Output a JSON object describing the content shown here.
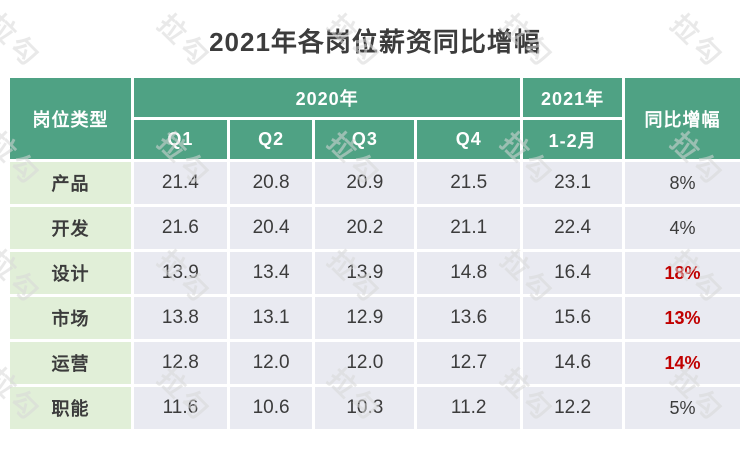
{
  "title": "2021年各岗位薪资同比增幅",
  "watermark": {
    "text": "拉勾"
  },
  "colors": {
    "header_green": "#4FA284",
    "label_green": "#E1EFD8",
    "cell_gray": "#E9EAF1",
    "highlight_red": "#C00000",
    "text_dark": "#3C3C3C",
    "watermark_gray": "#D8D8D8"
  },
  "chart_data": {
    "type": "table",
    "title": "2021年各岗位薪资同比增幅",
    "header": {
      "col_type": "岗位类型",
      "group_2020": "2020年",
      "group_2021": "2021年",
      "quarters": [
        "Q1",
        "Q2",
        "Q3",
        "Q4"
      ],
      "months_2021": "1-2月",
      "yoy": "同比增幅"
    },
    "rows": [
      {
        "label": "产品",
        "values": [
          "21.4",
          "20.8",
          "20.9",
          "21.5",
          "23.1"
        ],
        "yoy": "8%",
        "highlight": false
      },
      {
        "label": "开发",
        "values": [
          "21.6",
          "20.4",
          "20.2",
          "21.1",
          "22.4"
        ],
        "yoy": "4%",
        "highlight": false
      },
      {
        "label": "设计",
        "values": [
          "13.9",
          "13.4",
          "13.9",
          "14.8",
          "16.4"
        ],
        "yoy": "18%",
        "highlight": true
      },
      {
        "label": "市场",
        "values": [
          "13.8",
          "13.1",
          "12.9",
          "13.6",
          "15.6"
        ],
        "yoy": "13%",
        "highlight": true
      },
      {
        "label": "运营",
        "values": [
          "12.8",
          "12.0",
          "12.0",
          "12.7",
          "14.6"
        ],
        "yoy": "14%",
        "highlight": true
      },
      {
        "label": "职能",
        "values": [
          "11.6",
          "10.6",
          "10.3",
          "11.2",
          "12.2"
        ],
        "yoy": "5%",
        "highlight": false
      }
    ]
  }
}
